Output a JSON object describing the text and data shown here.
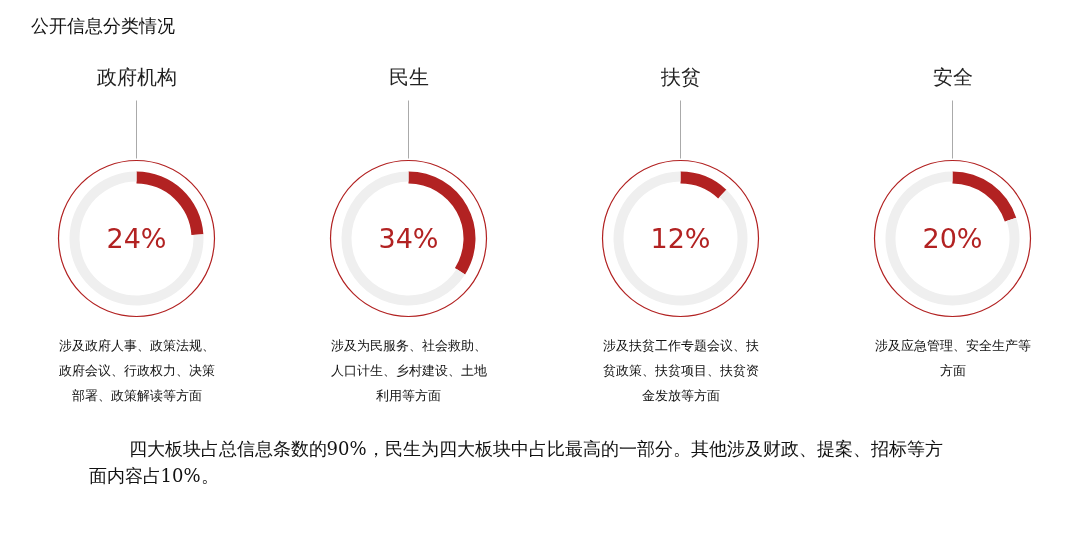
{
  "chart_data": [
    {
      "type": "other",
      "title": "公开信息分类情况",
      "annotations": [
        "四大板块占总信息条数的90%，民生为四大板块中占比最高的一部分。其他涉及财政、提案、招标等方面内容占10%。"
      ]
    },
    {
      "type": "donut",
      "title": "政府机构",
      "categories": [
        null,
        null
      ],
      "values": [
        24,
        76
      ],
      "colors": [
        "#b22222",
        "#efefef"
      ],
      "annotations": [
        "24%",
        "涉及政府人事、政策法规、政府会议、行政权力、决策部署、政策解读等方面"
      ]
    },
    {
      "type": "donut",
      "title": "民生",
      "categories": [
        null,
        null
      ],
      "values": [
        34,
        66
      ],
      "colors": [
        "#b22222",
        "#efefef"
      ],
      "annotations": [
        "34%",
        "涉及为民服务、社会救助、人口计生、乡村建设、土地利用等方面"
      ]
    },
    {
      "type": "donut",
      "title": "扶贫",
      "categories": [
        null,
        null
      ],
      "values": [
        12,
        88
      ],
      "colors": [
        "#b22222",
        "#efefef"
      ],
      "annotations": [
        "12%",
        "涉及扶贫工作专题会议、扶贫政策、扶贫项目、扶贫资金发放等方面"
      ]
    },
    {
      "type": "donut",
      "title": "安全",
      "categories": [
        null,
        null
      ],
      "values": [
        20,
        80
      ],
      "colors": [
        "#b22222",
        "#efefef"
      ],
      "annotations": [
        "20%",
        "涉及应急管理、安全生产等方面"
      ]
    }
  ]
}
